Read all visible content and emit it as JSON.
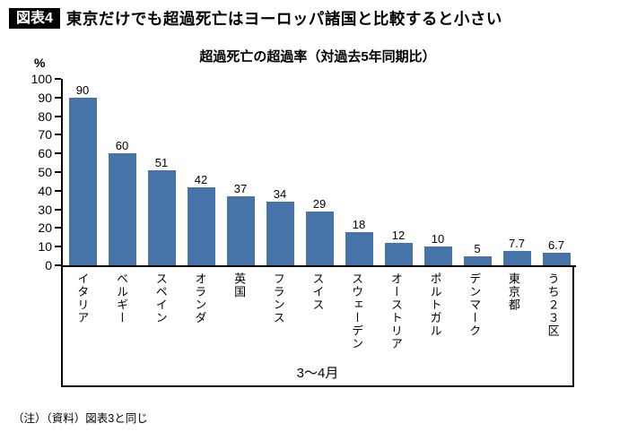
{
  "header": {
    "badge": "図表4",
    "title": "東京だけでも超過死亡はヨーロッパ諸国と比較すると小さい"
  },
  "chart_data": {
    "type": "bar",
    "title": "超過死亡の超過率（対過去5年同期比）",
    "ylabel": "%",
    "ylim": [
      0,
      100
    ],
    "ytick_step": 10,
    "grid": false,
    "legend": "none",
    "categories": [
      "イタリア",
      "ベルギー",
      "スペイン",
      "オランダ",
      "英国",
      "フランス",
      "スイス",
      "スウェーデン",
      "オーストリア",
      "ポルトガル",
      "デンマーク",
      "東京都",
      "うち２３区"
    ],
    "values": [
      90,
      60,
      51,
      42,
      37,
      34,
      29,
      18,
      12,
      10,
      5,
      7.7,
      6.7
    ],
    "value_labels": [
      "90",
      "60",
      "51",
      "42",
      "37",
      "34",
      "29",
      "18",
      "12",
      "10",
      "5",
      "7.7",
      "6.7"
    ],
    "period_label": "3～4月",
    "bar_color": "#4673a8"
  },
  "footnote": "（注）（資料）図表3と同じ"
}
